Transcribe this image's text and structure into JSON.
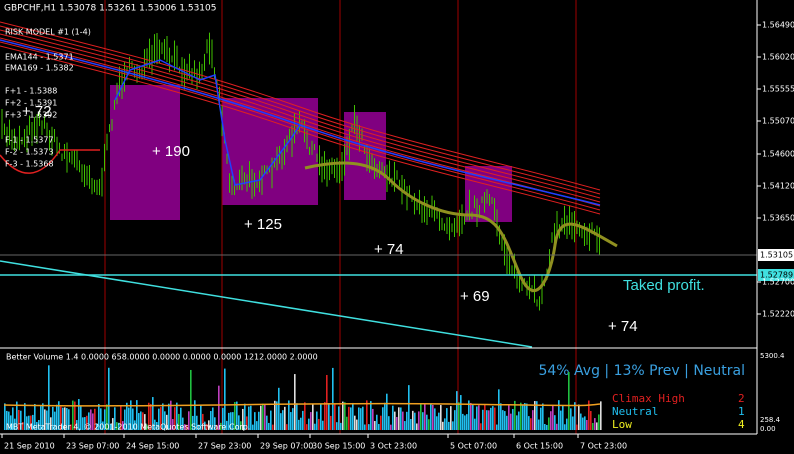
{
  "window": {
    "title": "GBPCHF,H1  1.53078  1.53261  1.53006  1.53105"
  },
  "indicators": [
    "RISK MODEL #1 (1-4)",
    "EMA144 - 1.5371",
    "EMA169 - 1.5382",
    "F+1 - 1.5388",
    "F+2 - 1.5391",
    "F+3 - 1.5392",
    "F-1 - 1.5377",
    "F-2 - 1.5373",
    "F-3 - 1.5368"
  ],
  "annotations": [
    "+ 72",
    "+ 190",
    "+ 125",
    "+ 74",
    "+ 69",
    "+ 74",
    "Taked profit."
  ],
  "price_axis": [
    "1.56490",
    "1.56020",
    "1.55555",
    "1.55070",
    "1.54600",
    "1.54120",
    "1.53650",
    "1.52700",
    "1.52220"
  ],
  "current_price": "1.53105",
  "take_profit_price": "1.52789",
  "volume_panel": {
    "title": "Better Volume 1.4 0.0000 658.0000 0.0000 0.0000 0.0000 1212.0000 2.0000",
    "status": "54% Avg | 13% Prev | Neutral",
    "legend": [
      {
        "name": "Climax High",
        "count": "2"
      },
      {
        "name": "Neutral",
        "count": "1"
      },
      {
        "name": "Low",
        "count": "4"
      }
    ],
    "axis": [
      "5300.4",
      "258.4",
      "0.00"
    ]
  },
  "footer": "MBT MetaTrader 4, © 2001-2010 MetaQuotes Software Corp.",
  "time_axis": [
    "21 Sep 2010",
    "23 Sep 07:00",
    "24 Sep 15:00",
    "27 Sep 23:00",
    "29 Sep 07:00",
    "30 Sep 15:00",
    "3 Oct 23:00",
    "5 Oct 07:00",
    "6 Oct 15:00",
    "7 Oct 23:00"
  ]
}
